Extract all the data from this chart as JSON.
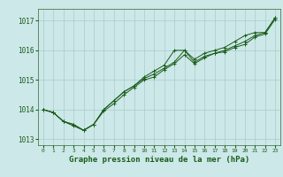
{
  "title": "Graphe pression niveau de la mer (hPa)",
  "bg_color": "#cce8e8",
  "grid_color": "#aacccc",
  "line_color": "#1a5c1a",
  "marker_color": "#1a5c1a",
  "xlim": [
    -0.5,
    23.5
  ],
  "ylim": [
    1012.8,
    1017.4
  ],
  "yticks": [
    1013,
    1014,
    1015,
    1016,
    1017
  ],
  "xticks": [
    0,
    1,
    2,
    3,
    4,
    5,
    6,
    7,
    8,
    9,
    10,
    11,
    12,
    13,
    14,
    15,
    16,
    17,
    18,
    19,
    20,
    21,
    22,
    23
  ],
  "series": [
    [
      1014.0,
      1013.9,
      1013.6,
      1013.5,
      1013.3,
      1013.5,
      1014.0,
      1014.3,
      1014.6,
      1014.8,
      1015.1,
      1015.3,
      1015.5,
      1016.0,
      1016.0,
      1015.7,
      1015.9,
      1016.0,
      1016.1,
      1016.3,
      1016.5,
      1016.6,
      1016.6,
      1017.1
    ],
    [
      1014.0,
      1013.9,
      1013.6,
      1013.5,
      1013.3,
      1013.5,
      1014.0,
      1014.3,
      1014.6,
      1014.8,
      1015.05,
      1015.2,
      1015.4,
      1015.6,
      1016.0,
      1015.6,
      1015.8,
      1015.9,
      1016.0,
      1016.15,
      1016.3,
      1016.5,
      1016.6,
      1017.1
    ],
    [
      1014.0,
      1013.9,
      1013.6,
      1013.45,
      1013.3,
      1013.5,
      1013.95,
      1014.2,
      1014.5,
      1014.75,
      1015.0,
      1015.1,
      1015.35,
      1015.55,
      1015.85,
      1015.55,
      1015.75,
      1015.9,
      1015.95,
      1016.1,
      1016.2,
      1016.45,
      1016.55,
      1017.05
    ]
  ],
  "tick_fontsize": 5,
  "label_fontsize": 6.5,
  "spine_color": "#336633"
}
